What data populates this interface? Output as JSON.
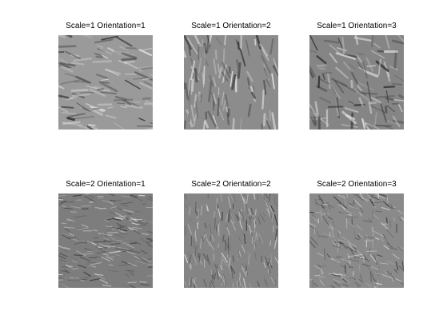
{
  "panels": [
    {
      "title": "Scale=1 Orientation=1",
      "image_icon": "filter-response-image",
      "base_gray": "#9a9a9a",
      "feature_angle_deg": 10,
      "scale": 1
    },
    {
      "title": "Scale=1 Orientation=2",
      "image_icon": "filter-response-image",
      "base_gray": "#8c8c8c",
      "feature_angle_deg": 80,
      "scale": 1
    },
    {
      "title": "Scale=1 Orientation=3",
      "image_icon": "filter-response-image",
      "base_gray": "#858585",
      "feature_angle_deg": 45,
      "scale": 1
    },
    {
      "title": "Scale=2 Orientation=1",
      "image_icon": "filter-response-image",
      "base_gray": "#7d7d7d",
      "feature_angle_deg": 10,
      "scale": 2
    },
    {
      "title": "Scale=2 Orientation=2",
      "image_icon": "filter-response-image",
      "base_gray": "#858585",
      "feature_angle_deg": 80,
      "scale": 2
    },
    {
      "title": "Scale=2 Orientation=3",
      "image_icon": "filter-response-image",
      "base_gray": "#8a8a8a",
      "feature_angle_deg": 45,
      "scale": 2
    }
  ]
}
